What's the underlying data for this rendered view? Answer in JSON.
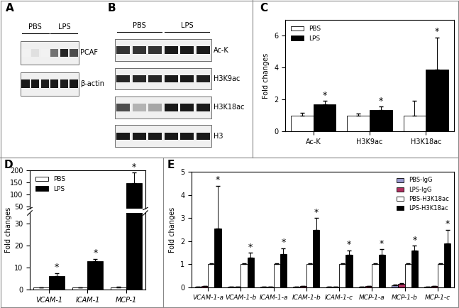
{
  "chart_data": [
    {
      "type": "blot",
      "title": "A",
      "groups": [
        "PBS",
        "LPS"
      ],
      "rows": [
        {
          "name": "PCAF",
          "intensities": [
            0.05,
            0.12,
            0.05,
            0.55,
            0.85,
            0.7
          ]
        },
        {
          "name": "β-actin",
          "intensities": [
            0.9,
            0.9,
            0.88,
            0.9,
            0.88,
            0.9
          ]
        }
      ]
    },
    {
      "type": "blot",
      "title": "B",
      "groups": [
        "PBS",
        "LPS"
      ],
      "rows": [
        {
          "name": "Ac-K",
          "intensities": [
            0.8,
            0.8,
            0.8,
            0.9,
            0.9,
            0.9
          ]
        },
        {
          "name": "H3K9ac",
          "intensities": [
            0.85,
            0.85,
            0.85,
            0.9,
            0.9,
            0.88
          ]
        },
        {
          "name": "H3K18ac",
          "intensities": [
            0.7,
            0.3,
            0.35,
            0.9,
            0.9,
            0.9
          ]
        },
        {
          "name": "H3",
          "intensities": [
            0.9,
            0.9,
            0.9,
            0.9,
            0.9,
            0.9
          ]
        }
      ]
    },
    {
      "type": "bar",
      "title": "C",
      "y_label": "Fold changes",
      "categories": [
        "Ac-K",
        "H3K9ac",
        "H3K18ac"
      ],
      "series": [
        {
          "name": "PBS",
          "color": "#ffffff",
          "values": [
            1,
            1,
            1
          ],
          "errors": [
            0.15,
            0.1,
            0.9
          ]
        },
        {
          "name": "LPS",
          "color": "#000000",
          "values": [
            1.7,
            1.35,
            3.9
          ],
          "errors": [
            0.2,
            0.2,
            2.0
          ],
          "annotations": [
            "*",
            "*",
            "*"
          ]
        }
      ],
      "ylim": [
        0,
        7
      ],
      "yticks": [
        0,
        2,
        4,
        6
      ],
      "legend": "upper left"
    },
    {
      "type": "bar",
      "title": "D",
      "y_label": "Fold changes",
      "categories": [
        "VCAM-1",
        "ICAM-1",
        "MCP-1"
      ],
      "series": [
        {
          "name": "PBS",
          "color": "#ffffff",
          "values": [
            1,
            1,
            1
          ],
          "errors": [
            0.1,
            0.1,
            0.2
          ]
        },
        {
          "name": "LPS",
          "color": "#000000",
          "values": [
            6,
            13,
            148
          ],
          "errors": [
            1.5,
            1,
            42
          ],
          "annotations": [
            "*",
            "*",
            "*"
          ]
        }
      ],
      "ylim": [
        0,
        200
      ],
      "y_break": [
        35,
        40
      ],
      "yticks": [
        0,
        10,
        20,
        30,
        50,
        100,
        150,
        200
      ],
      "legend": "upper left"
    },
    {
      "type": "bar",
      "title": "E",
      "y_label": "Fold changes",
      "categories": [
        "VCAM-1-a",
        "VCAM-1-b",
        "ICAM-1-a",
        "ICAM-1-b",
        "ICAM-1-c",
        "MCP-1-a",
        "MCP-1-b",
        "MCP-1-c"
      ],
      "series": [
        {
          "name": "PBS-IgG",
          "color": "#9a9ad0",
          "values": [
            0.03,
            0.02,
            0.02,
            0.02,
            0.02,
            0.03,
            0.1,
            0.03
          ],
          "errors": [
            0.01,
            0.01,
            0.01,
            0.01,
            0.01,
            0.01,
            0.03,
            0.01
          ]
        },
        {
          "name": "LPS-IgG",
          "color": "#b03060",
          "values": [
            0.05,
            0.03,
            0.03,
            0.05,
            0.03,
            0.05,
            0.15,
            0.05
          ],
          "errors": [
            0.01,
            0.01,
            0.01,
            0.01,
            0.01,
            0.01,
            0.03,
            0.01
          ]
        },
        {
          "name": "PBS-H3K18ac",
          "color": "#ffffff",
          "values": [
            1,
            1,
            1,
            1,
            1,
            1,
            1,
            1
          ],
          "errors": [
            0.05,
            0.03,
            0.03,
            0.03,
            0.03,
            0.03,
            0.05,
            0.03
          ]
        },
        {
          "name": "LPS-H3K18ac",
          "color": "#000000",
          "values": [
            2.55,
            1.3,
            1.45,
            2.5,
            1.4,
            1.4,
            1.6,
            1.9
          ],
          "errors": [
            1.85,
            0.2,
            0.25,
            0.5,
            0.2,
            0.25,
            0.2,
            0.6
          ],
          "annotations": [
            "*",
            "*",
            "*",
            "*",
            "*",
            "*",
            "*",
            "*"
          ]
        }
      ],
      "ylim": [
        0,
        5
      ],
      "yticks": [
        0,
        1,
        2,
        3,
        4,
        5
      ],
      "legend": "upper right"
    }
  ]
}
